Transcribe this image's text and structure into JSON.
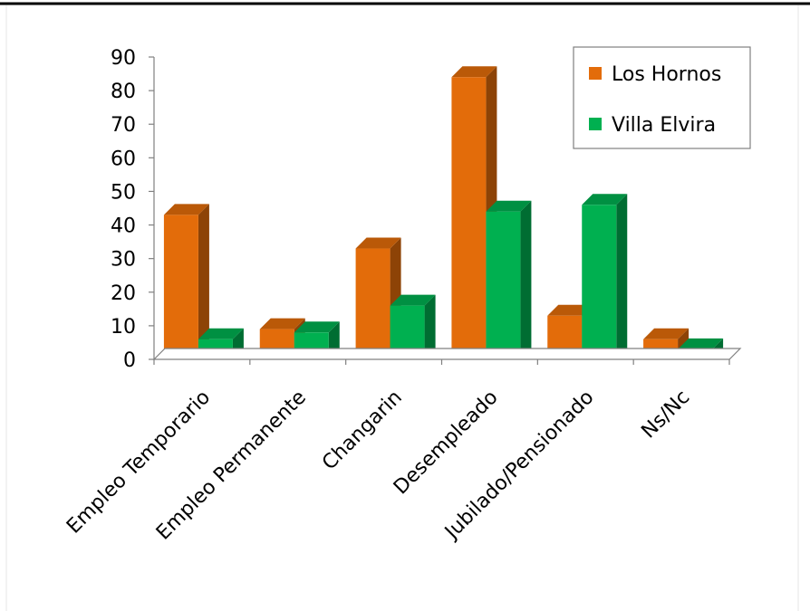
{
  "chart_data": {
    "type": "bar",
    "style": "3d-clustered-column",
    "categories": [
      "Empleo Temporario",
      "Empleo Permanente",
      "Changarin",
      "Desempleado",
      "Jubilado/Pensionado",
      "Ns/Nc"
    ],
    "series": [
      {
        "name": "Los Hornos",
        "values": [
          43,
          9,
          33,
          84,
          13,
          6
        ],
        "color": "#E36C0A"
      },
      {
        "name": "Villa Elvira",
        "values": [
          6,
          8,
          16,
          44,
          46,
          3
        ],
        "color": "#00B050"
      }
    ],
    "ylim": [
      0,
      90
    ],
    "yticks": [
      "0",
      "10",
      "20",
      "30",
      "40",
      "50",
      "60",
      "70",
      "80",
      "90"
    ],
    "gridlines": false,
    "legend_position": "top-right",
    "colors": {
      "frame_border": "#000000",
      "axis": "#808080",
      "text": "#000000"
    }
  }
}
